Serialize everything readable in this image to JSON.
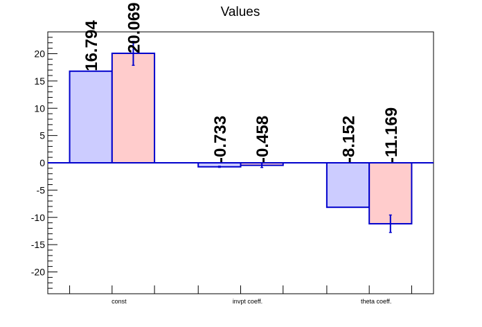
{
  "chart_data": {
    "type": "bar",
    "title": "Values",
    "xlabel": "",
    "ylabel": "",
    "categories": [
      "const",
      "invpt coeff.",
      "theta coeff."
    ],
    "ylim": [
      -24,
      24
    ],
    "yticks": [
      -20,
      -15,
      -10,
      -5,
      0,
      5,
      10,
      15,
      20
    ],
    "grid": false,
    "series": [
      {
        "values": [
          16.794,
          -0.733,
          -8.152
        ],
        "value_labels": [
          "16.794",
          "-0.733",
          "-8.152"
        ],
        "errors": [
          null,
          0.1,
          null
        ],
        "fill": "#ccccff",
        "stroke": "#0000cc"
      },
      {
        "values": [
          20.069,
          -0.458,
          -11.169
        ],
        "value_labels": [
          "20.069",
          "-0.458",
          "-11.169"
        ],
        "errors": [
          2.2,
          0.4,
          1.6
        ],
        "fill": "#ffcccc",
        "stroke": "#0000cc"
      }
    ]
  }
}
